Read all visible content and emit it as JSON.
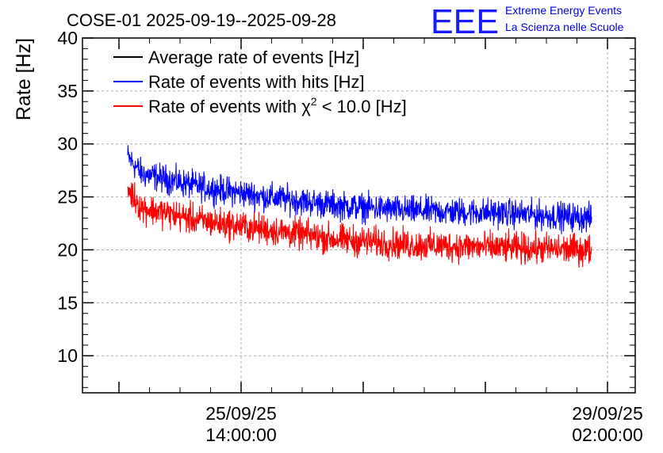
{
  "chart_data": {
    "type": "line",
    "title": "COSE-01 2025-09-19--2025-09-28",
    "ylabel": "Rate [Hz]",
    "xlabel": "",
    "ylim": [
      6.5,
      40
    ],
    "y_ticks": [
      10,
      15,
      20,
      25,
      30,
      35,
      40
    ],
    "y_tick_labels": [
      "10",
      "15",
      "20",
      "25",
      "30",
      "35",
      "40"
    ],
    "x_major_ticks": [
      {
        "date": "25/09/25",
        "time": "14:00:00"
      },
      {
        "date": "29/09/25",
        "time": "02:00:00"
      }
    ],
    "grid": true,
    "legend_position": "top-left",
    "series": [
      {
        "name": "Average rate of events [Hz]",
        "color": "#000000",
        "trend_points": []
      },
      {
        "name": "Rate of events with hits [Hz]",
        "color": "#0000ff",
        "trend_points": [
          [
            0.0,
            28.8
          ],
          [
            0.03,
            27.2
          ],
          [
            0.15,
            26.0
          ],
          [
            0.3,
            25.0
          ],
          [
            0.45,
            24.2
          ],
          [
            0.6,
            23.7
          ],
          [
            0.8,
            23.5
          ],
          [
            1.0,
            23.0
          ]
        ],
        "noise": 1.2
      },
      {
        "name": "Rate of events with χ² < 10.0 [Hz]",
        "color": "#ff0000",
        "trend_points": [
          [
            0.0,
            25.8
          ],
          [
            0.03,
            24.0
          ],
          [
            0.15,
            22.8
          ],
          [
            0.3,
            21.9
          ],
          [
            0.45,
            21.0
          ],
          [
            0.6,
            20.5
          ],
          [
            0.8,
            20.2
          ],
          [
            1.0,
            20.0
          ]
        ],
        "noise": 1.3
      }
    ]
  },
  "legend": {
    "items": [
      {
        "label": "Average rate of events [Hz]",
        "color": "#000000"
      },
      {
        "label": "Rate of events with hits [Hz]",
        "color": "#0000ff"
      },
      {
        "label_pre": "Rate of events with ",
        "label_chi": "χ",
        "label_sup": "2",
        "label_post": " < 10.0 [Hz]",
        "color": "#ff0000"
      }
    ]
  },
  "logo": {
    "letters": "EEE",
    "line1": "Extreme Energy Events",
    "line2": "La Scienza nelle Scuole",
    "color": "#0000dd"
  }
}
